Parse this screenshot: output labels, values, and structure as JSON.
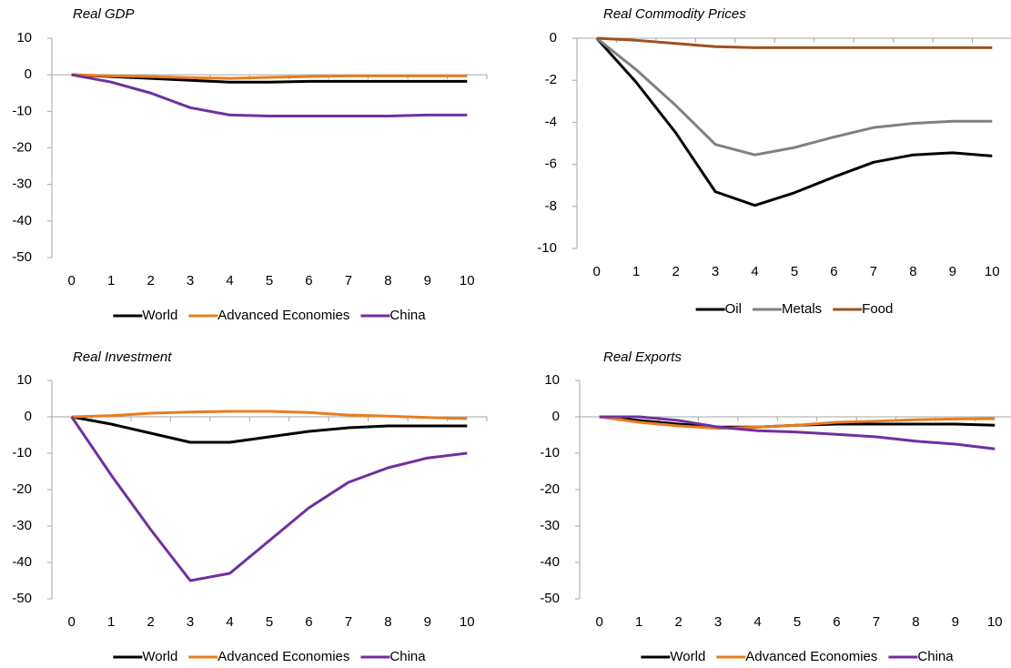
{
  "chart_data": [
    {
      "type": "line",
      "title": "Real GDP",
      "categories": [
        0,
        1,
        2,
        3,
        4,
        5,
        6,
        7,
        8,
        9,
        10
      ],
      "series": [
        {
          "name": "World",
          "color": "#000000",
          "values": [
            0,
            -0.5,
            -1,
            -1.5,
            -2,
            -2,
            -1.8,
            -1.8,
            -1.8,
            -1.8,
            -1.8
          ]
        },
        {
          "name": "Advanced Economies",
          "color": "#e87d1e",
          "values": [
            0,
            -0.3,
            -0.5,
            -0.8,
            -1,
            -0.7,
            -0.5,
            -0.3,
            -0.3,
            -0.3,
            -0.3
          ]
        },
        {
          "name": "China",
          "color": "#7030a0",
          "values": [
            0,
            -2,
            -5,
            -9,
            -11,
            -11.3,
            -11.3,
            -11.3,
            -11.3,
            -11,
            -11
          ]
        }
      ],
      "ylim": [
        -50,
        10
      ],
      "yticks": [
        10,
        0,
        -10,
        -20,
        -30,
        -40,
        -50
      ]
    },
    {
      "type": "line",
      "title": "Real Commodity Prices",
      "categories": [
        0,
        1,
        2,
        3,
        4,
        5,
        6,
        7,
        8,
        9,
        10
      ],
      "series": [
        {
          "name": "Oil",
          "color": "#000000",
          "values": [
            0,
            -2.1,
            -4.5,
            -7.3,
            -7.95,
            -7.35,
            -6.6,
            -5.9,
            -5.55,
            -5.45,
            -5.6
          ]
        },
        {
          "name": "Metals",
          "color": "#808080",
          "values": [
            0,
            -1.5,
            -3.2,
            -5.05,
            -5.55,
            -5.2,
            -4.7,
            -4.25,
            -4.05,
            -3.95,
            -3.95
          ]
        },
        {
          "name": "Food",
          "color": "#a0501e",
          "values": [
            0,
            -0.1,
            -0.25,
            -0.4,
            -0.45,
            -0.45,
            -0.45,
            -0.45,
            -0.45,
            -0.45,
            -0.45
          ]
        }
      ],
      "ylim": [
        -10,
        0
      ],
      "yticks": [
        0,
        -2,
        -4,
        -6,
        -8,
        -10
      ]
    },
    {
      "type": "line",
      "title": "Real Investment",
      "categories": [
        0,
        1,
        2,
        3,
        4,
        5,
        6,
        7,
        8,
        9,
        10
      ],
      "series": [
        {
          "name": "World",
          "color": "#000000",
          "values": [
            0,
            -2,
            -4.5,
            -7,
            -7,
            -5.5,
            -4,
            -3,
            -2.5,
            -2.5,
            -2.5
          ]
        },
        {
          "name": "Advanced Economies",
          "color": "#e87d1e",
          "values": [
            0,
            0.3,
            1,
            1.3,
            1.5,
            1.5,
            1.2,
            0.5,
            0.2,
            -0.2,
            -0.5
          ]
        },
        {
          "name": "China",
          "color": "#7030a0",
          "values": [
            0,
            -16,
            -31,
            -45,
            -43,
            -34,
            -25,
            -18,
            -14,
            -11.3,
            -10
          ]
        }
      ],
      "ylim": [
        -50,
        10
      ],
      "yticks": [
        10,
        0,
        -10,
        -20,
        -30,
        -40,
        -50
      ]
    },
    {
      "type": "line",
      "title": "Real Exports",
      "categories": [
        0,
        1,
        2,
        3,
        4,
        5,
        6,
        7,
        8,
        9,
        10
      ],
      "series": [
        {
          "name": "World",
          "color": "#000000",
          "values": [
            0,
            -1,
            -2,
            -2.8,
            -2.8,
            -2.3,
            -2,
            -2,
            -2,
            -2,
            -2.3
          ]
        },
        {
          "name": "Advanced Economies",
          "color": "#e87d1e",
          "values": [
            0,
            -1.5,
            -2.5,
            -3.2,
            -2.8,
            -2.3,
            -1.5,
            -1.2,
            -0.8,
            -0.6,
            -0.5
          ]
        },
        {
          "name": "China",
          "color": "#7030a0",
          "values": [
            0,
            0,
            -1,
            -2.8,
            -3.8,
            -4.2,
            -4.8,
            -5.5,
            -6.7,
            -7.5,
            -8.8
          ]
        }
      ],
      "ylim": [
        -50,
        10
      ],
      "yticks": [
        10,
        0,
        -10,
        -20,
        -30,
        -40,
        -50
      ]
    }
  ]
}
